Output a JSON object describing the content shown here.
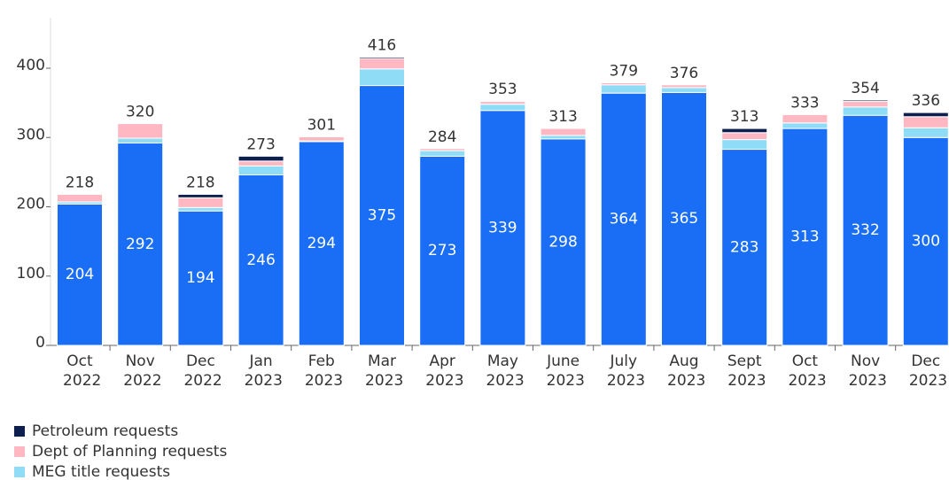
{
  "chart_data": {
    "type": "stacked_bar",
    "categories": [
      "Oct 2022",
      "Nov 2022",
      "Dec 2022",
      "Jan 2023",
      "Feb 2023",
      "Mar 2023",
      "Apr 2023",
      "May 2023",
      "June 2023",
      "July 2023",
      "Aug 2023",
      "Sept 2023",
      "Oct 2023",
      "Nov 2023",
      "Dec 2023"
    ],
    "series": [
      {
        "color": "#1a6ef5",
        "values": [
          204,
          292,
          194,
          246,
          294,
          375,
          273,
          339,
          298,
          364,
          365,
          283,
          313,
          332,
          300
        ]
      },
      {
        "name": "MEG title requests",
        "color": "#8fdcf7",
        "values": [
          3,
          7,
          5,
          13,
          1,
          24,
          8,
          9,
          5,
          12,
          7,
          14,
          8,
          12,
          14
        ]
      },
      {
        "name": "Dept of Planning requests",
        "color": "#ffb7c2",
        "values": [
          11,
          21,
          14,
          7,
          6,
          15,
          3,
          4,
          10,
          3,
          4,
          10,
          12,
          8,
          16
        ]
      },
      {
        "name": "Petroleum requests",
        "color": "#0c1f4f",
        "values": [
          0,
          0,
          5,
          7,
          0,
          2,
          0,
          1,
          0,
          0,
          0,
          6,
          0,
          2,
          6
        ]
      }
    ],
    "totals": [
      218,
      320,
      218,
      273,
      301,
      416,
      284,
      353,
      313,
      379,
      376,
      313,
      333,
      354,
      336
    ],
    "ylim": [
      0,
      470
    ],
    "yticks": [
      0,
      100,
      200,
      300,
      400
    ]
  }
}
